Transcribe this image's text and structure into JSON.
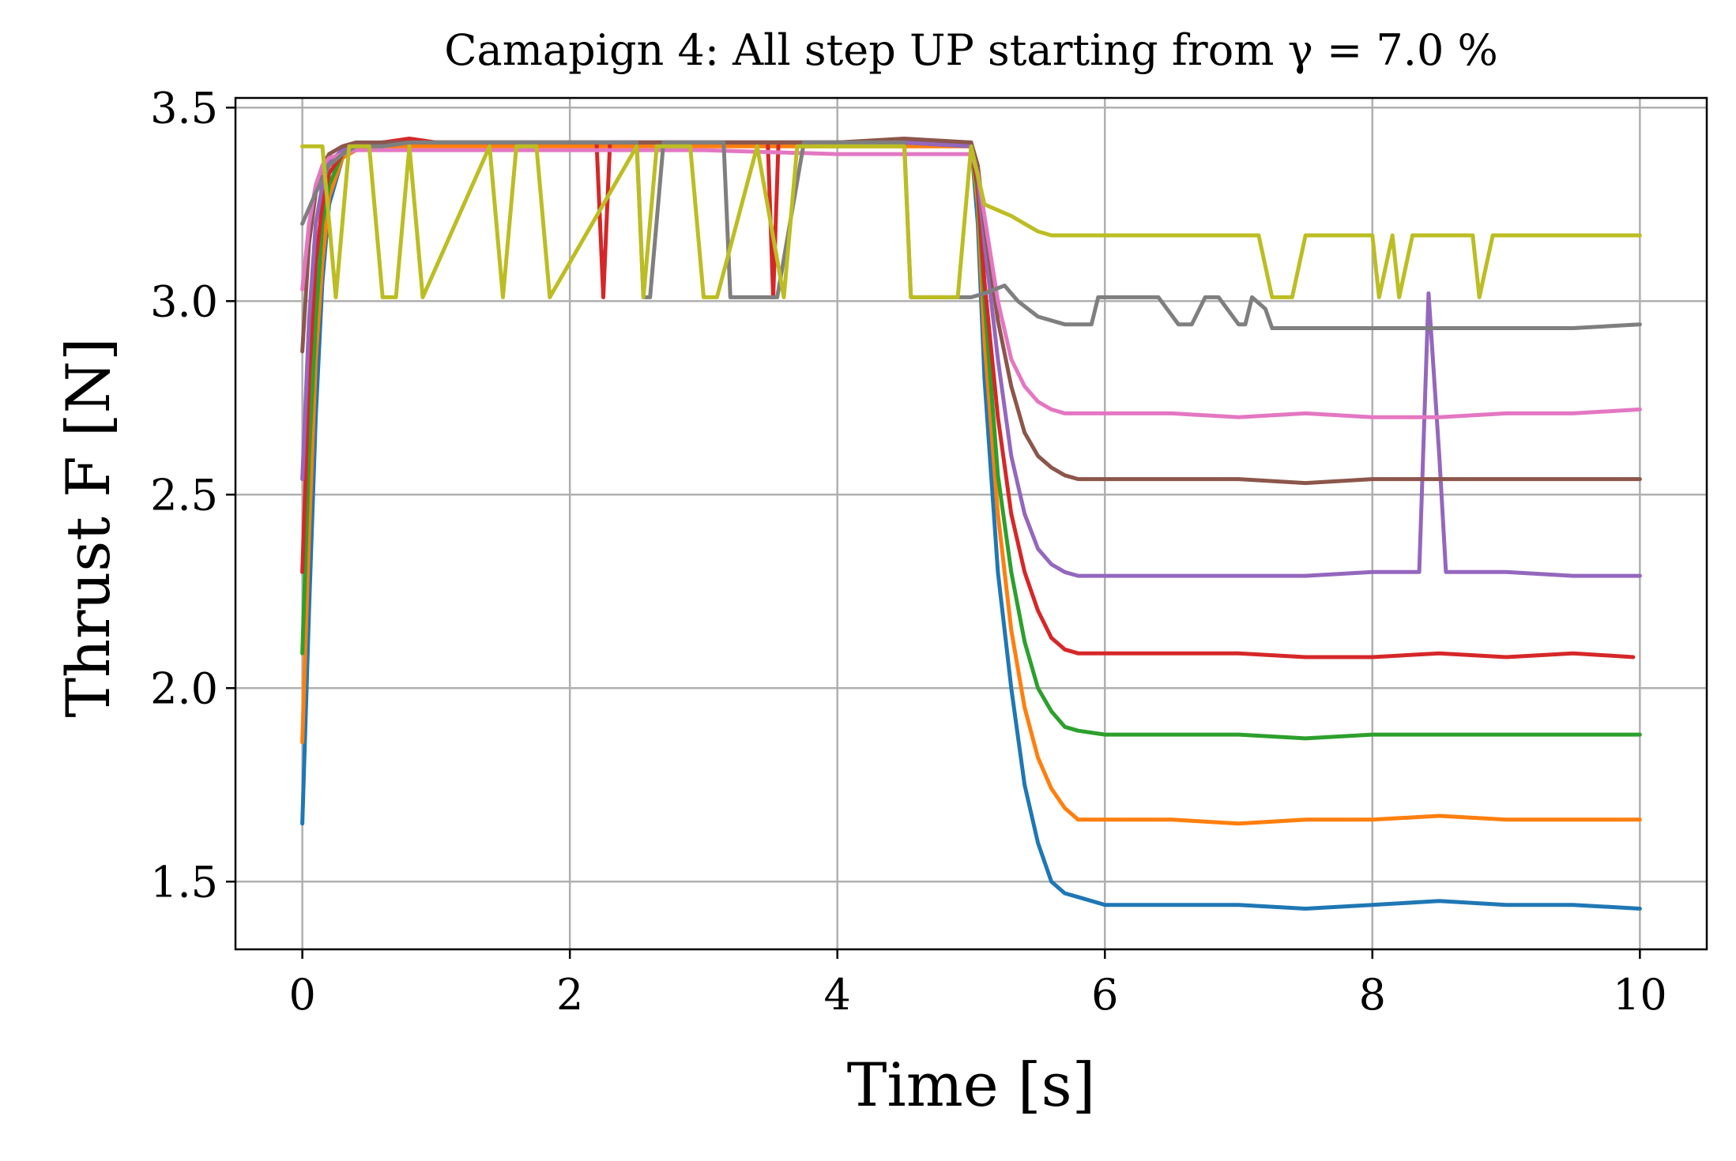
{
  "chart_data": {
    "type": "line",
    "title": "Camapign 4: All step UP starting from γ = 7.0 %",
    "xlabel": "Time [s]",
    "ylabel": "Thrust F [N]",
    "xlim": [
      -0.5,
      10.5
    ],
    "ylim": [
      1.325,
      3.525
    ],
    "xticks": [
      0,
      2,
      4,
      6,
      8,
      10
    ],
    "xtick_labels": [
      "0",
      "2",
      "4",
      "6",
      "8",
      "10"
    ],
    "yticks": [
      1.5,
      2.0,
      2.5,
      3.0,
      3.5
    ],
    "ytick_labels": [
      "1.5",
      "2.0",
      "2.5",
      "3.0",
      "3.5"
    ],
    "grid": true,
    "legend": false,
    "series": [
      {
        "color": "#1f77b4",
        "x": [
          0,
          0.05,
          0.1,
          0.15,
          0.2,
          0.3,
          0.4,
          0.6,
          0.8,
          1,
          2,
          3,
          4,
          4.5,
          5,
          5.05,
          5.1,
          5.2,
          5.3,
          5.4,
          5.5,
          5.6,
          5.7,
          5.8,
          6,
          6.2,
          6.5,
          7,
          7.5,
          8,
          8.5,
          9,
          9.5,
          10
        ],
        "y": [
          1.65,
          2.2,
          2.7,
          3.05,
          3.25,
          3.37,
          3.4,
          3.41,
          3.41,
          3.41,
          3.41,
          3.41,
          3.41,
          3.41,
          3.41,
          3.2,
          2.8,
          2.3,
          2.0,
          1.75,
          1.6,
          1.5,
          1.47,
          1.46,
          1.44,
          1.44,
          1.44,
          1.44,
          1.43,
          1.44,
          1.45,
          1.44,
          1.44,
          1.43
        ]
      },
      {
        "color": "#ff7f0e",
        "x": [
          0,
          0.05,
          0.1,
          0.15,
          0.2,
          0.3,
          0.4,
          0.6,
          0.8,
          1,
          2,
          3,
          4,
          4.5,
          5,
          5.05,
          5.1,
          5.2,
          5.3,
          5.4,
          5.5,
          5.6,
          5.7,
          5.8,
          6,
          6.5,
          7,
          7.5,
          8,
          8.5,
          9,
          9.5,
          10
        ],
        "y": [
          1.86,
          2.4,
          2.85,
          3.1,
          3.27,
          3.37,
          3.39,
          3.4,
          3.4,
          3.4,
          3.4,
          3.4,
          3.4,
          3.4,
          3.4,
          3.25,
          2.9,
          2.45,
          2.15,
          1.95,
          1.82,
          1.74,
          1.69,
          1.66,
          1.66,
          1.66,
          1.65,
          1.66,
          1.66,
          1.67,
          1.66,
          1.66,
          1.66
        ]
      },
      {
        "color": "#2ca02c",
        "x": [
          0,
          0.05,
          0.1,
          0.15,
          0.2,
          0.3,
          0.4,
          0.6,
          0.8,
          1,
          2,
          3,
          4,
          4.5,
          5,
          5.05,
          5.1,
          5.2,
          5.3,
          5.4,
          5.5,
          5.6,
          5.7,
          5.8,
          6,
          6.5,
          7,
          7.5,
          8,
          8.5,
          9,
          9.5,
          10
        ],
        "y": [
          2.09,
          2.6,
          2.95,
          3.2,
          3.3,
          3.38,
          3.4,
          3.41,
          3.41,
          3.41,
          3.41,
          3.41,
          3.41,
          3.41,
          3.4,
          3.28,
          3.0,
          2.55,
          2.3,
          2.12,
          2.0,
          1.94,
          1.9,
          1.89,
          1.88,
          1.88,
          1.88,
          1.87,
          1.88,
          1.88,
          1.88,
          1.88,
          1.88
        ]
      },
      {
        "color": "#d62728",
        "x": [
          0,
          0.05,
          0.1,
          0.15,
          0.2,
          0.3,
          0.4,
          0.6,
          0.8,
          1,
          2,
          2.2,
          2.25,
          2.3,
          3,
          3.48,
          3.52,
          3.56,
          3.6,
          4,
          4.5,
          5,
          5.05,
          5.1,
          5.2,
          5.3,
          5.4,
          5.5,
          5.6,
          5.7,
          5.8,
          6,
          6.5,
          7,
          7.5,
          8,
          8.5,
          9,
          9.5,
          9.95
        ],
        "y": [
          2.3,
          2.8,
          3.1,
          3.25,
          3.33,
          3.38,
          3.4,
          3.41,
          3.42,
          3.41,
          3.41,
          3.41,
          3.01,
          3.41,
          3.41,
          3.41,
          3.01,
          3.41,
          3.41,
          3.41,
          3.41,
          3.4,
          3.3,
          3.05,
          2.7,
          2.45,
          2.3,
          2.2,
          2.13,
          2.1,
          2.09,
          2.09,
          2.09,
          2.09,
          2.08,
          2.08,
          2.09,
          2.08,
          2.09,
          2.08
        ]
      },
      {
        "color": "#9467bd",
        "x": [
          0,
          0.05,
          0.1,
          0.15,
          0.2,
          0.3,
          0.4,
          0.6,
          0.8,
          1,
          2,
          3,
          4,
          4.5,
          5,
          5.05,
          5.1,
          5.2,
          5.3,
          5.4,
          5.5,
          5.6,
          5.7,
          5.8,
          6,
          6.5,
          7,
          7.5,
          8,
          8.35,
          8.42,
          8.5,
          8.55,
          9,
          9.5,
          10
        ],
        "y": [
          2.54,
          2.95,
          3.2,
          3.3,
          3.36,
          3.39,
          3.4,
          3.41,
          3.41,
          3.41,
          3.41,
          3.41,
          3.41,
          3.41,
          3.4,
          3.32,
          3.15,
          2.85,
          2.6,
          2.45,
          2.36,
          2.32,
          2.3,
          2.29,
          2.29,
          2.29,
          2.29,
          2.29,
          2.3,
          2.3,
          3.02,
          2.6,
          2.3,
          2.3,
          2.29,
          2.29
        ]
      },
      {
        "color": "#8c564b",
        "x": [
          0,
          0.05,
          0.1,
          0.15,
          0.2,
          0.3,
          0.4,
          0.6,
          0.8,
          1,
          2,
          3,
          4,
          4.5,
          5,
          5.05,
          5.1,
          5.2,
          5.3,
          5.4,
          5.5,
          5.6,
          5.7,
          5.8,
          6,
          6.5,
          7,
          7.5,
          8,
          8.5,
          9,
          9.5,
          10
        ],
        "y": [
          2.87,
          3.15,
          3.28,
          3.35,
          3.38,
          3.4,
          3.41,
          3.41,
          3.41,
          3.41,
          3.41,
          3.41,
          3.41,
          3.42,
          3.41,
          3.35,
          3.2,
          2.95,
          2.78,
          2.66,
          2.6,
          2.57,
          2.55,
          2.54,
          2.54,
          2.54,
          2.54,
          2.53,
          2.54,
          2.54,
          2.54,
          2.54,
          2.54
        ]
      },
      {
        "color": "#e377c2",
        "x": [
          0,
          0.05,
          0.1,
          0.15,
          0.2,
          0.3,
          0.4,
          0.6,
          0.8,
          1,
          2,
          3,
          4,
          4.5,
          5,
          5.05,
          5.1,
          5.2,
          5.3,
          5.4,
          5.5,
          5.6,
          5.7,
          5.8,
          6,
          6.5,
          7,
          7.5,
          8,
          8.5,
          9,
          9.5,
          10
        ],
        "y": [
          3.03,
          3.2,
          3.3,
          3.35,
          3.37,
          3.38,
          3.39,
          3.39,
          3.39,
          3.39,
          3.39,
          3.39,
          3.38,
          3.38,
          3.38,
          3.33,
          3.22,
          3.0,
          2.85,
          2.78,
          2.74,
          2.72,
          2.71,
          2.71,
          2.71,
          2.71,
          2.7,
          2.71,
          2.7,
          2.7,
          2.71,
          2.71,
          2.72
        ]
      },
      {
        "color": "#7f7f7f",
        "x": [
          0,
          0.1,
          0.2,
          0.3,
          0.4,
          0.6,
          0.8,
          1,
          2,
          2.5,
          2.55,
          2.6,
          2.7,
          3,
          3.15,
          3.2,
          3.3,
          3.5,
          3.55,
          3.75,
          4,
          4.5,
          4.55,
          4.6,
          4.9,
          5,
          5.1,
          5.25,
          5.35,
          5.5,
          5.7,
          5.9,
          5.95,
          6,
          6.4,
          6.55,
          6.65,
          6.75,
          6.85,
          7.0,
          7.05,
          7.1,
          7.2,
          7.25,
          7.5,
          8,
          8.5,
          9,
          9.5,
          10
        ],
        "y": [
          3.2,
          3.28,
          3.35,
          3.38,
          3.4,
          3.4,
          3.41,
          3.41,
          3.41,
          3.41,
          3.01,
          3.01,
          3.41,
          3.41,
          3.41,
          3.01,
          3.01,
          3.01,
          3.01,
          3.41,
          3.41,
          3.41,
          3.01,
          3.01,
          3.01,
          3.01,
          3.02,
          3.04,
          3.0,
          2.96,
          2.94,
          2.94,
          3.01,
          3.01,
          3.01,
          2.94,
          2.94,
          3.01,
          3.01,
          2.94,
          2.94,
          3.01,
          2.98,
          2.93,
          2.93,
          2.93,
          2.93,
          2.93,
          2.93,
          2.94
        ]
      },
      {
        "color": "#bcbd22",
        "x": [
          0,
          0.15,
          0.25,
          0.35,
          0.5,
          0.6,
          0.7,
          0.8,
          0.9,
          1.4,
          1.5,
          1.6,
          1.75,
          1.85,
          2.5,
          2.55,
          2.65,
          2.9,
          3.0,
          3.1,
          3.4,
          3.6,
          3.7,
          4.5,
          4.55,
          4.6,
          4.9,
          5,
          5.1,
          5.3,
          5.4,
          5.5,
          5.6,
          6,
          7,
          7.15,
          7.25,
          7.4,
          7.5,
          7.6,
          8.0,
          8.05,
          8.15,
          8.2,
          8.3,
          8.4,
          8.75,
          8.8,
          8.9,
          9,
          9.5,
          10
        ],
        "y": [
          3.4,
          3.4,
          3.01,
          3.4,
          3.4,
          3.01,
          3.01,
          3.4,
          3.01,
          3.4,
          3.01,
          3.4,
          3.4,
          3.01,
          3.4,
          3.01,
          3.4,
          3.4,
          3.01,
          3.01,
          3.4,
          3.01,
          3.4,
          3.4,
          3.01,
          3.01,
          3.01,
          3.4,
          3.25,
          3.22,
          3.2,
          3.18,
          3.17,
          3.17,
          3.17,
          3.17,
          3.01,
          3.01,
          3.17,
          3.17,
          3.17,
          3.01,
          3.17,
          3.01,
          3.17,
          3.17,
          3.17,
          3.01,
          3.17,
          3.17,
          3.17,
          3.17
        ]
      }
    ]
  }
}
